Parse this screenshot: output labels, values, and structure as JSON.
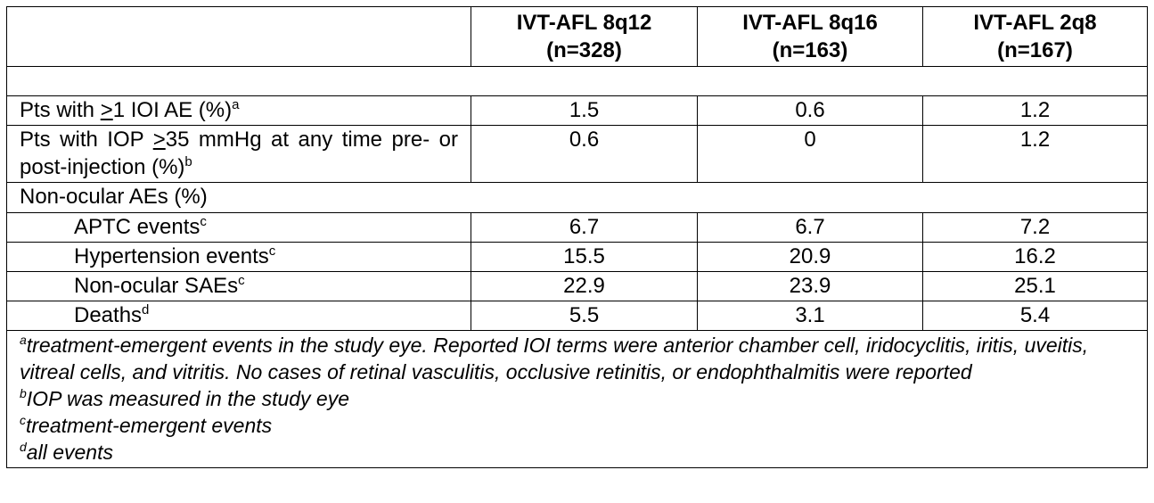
{
  "header": {
    "col0": "",
    "cols": [
      {
        "line1": "IVT-AFL 8q12",
        "line2": "(n=328)"
      },
      {
        "line1": "IVT-AFL 8q16",
        "line2": "(n=163)"
      },
      {
        "line1": "IVT-AFL 2q8",
        "line2": "(n=167)"
      }
    ]
  },
  "rows": [
    {
      "pre": "Pts with ",
      "ge": ">",
      "post": "1 IOI AE (%)",
      "sup": "a",
      "values": [
        "1.5",
        "0.6",
        "1.2"
      ]
    },
    {
      "pre": "Pts with IOP ",
      "ge": ">",
      "post": "35 mmHg at any time pre- or post-injection (%)",
      "sup": "b",
      "values": [
        "0.6",
        "0",
        "1.2"
      ]
    },
    {
      "label": "Non-ocular AEs (%)"
    },
    {
      "label": "APTC events",
      "sup": "c",
      "values": [
        "6.7",
        "6.7",
        "7.2"
      ]
    },
    {
      "label": "Hypertension events",
      "sup": "c",
      "values": [
        "15.5",
        "20.9",
        "16.2"
      ]
    },
    {
      "label": "Non-ocular SAEs",
      "sup": "c",
      "values": [
        "22.9",
        "23.9",
        "25.1"
      ]
    },
    {
      "label": "Deaths",
      "sup": "d",
      "values": [
        "5.5",
        "3.1",
        "5.4"
      ]
    }
  ],
  "footnotes": [
    {
      "mark": "a",
      "text": "treatment-emergent events in the study eye. Reported IOI terms were anterior chamber cell, iridocyclitis, iritis, uveitis, vitreal cells, and vitritis. No cases of retinal vasculitis, occlusive retinitis, or endophthalmitis were reported"
    },
    {
      "mark": "b",
      "text": "IOP was measured in the study eye"
    },
    {
      "mark": "c",
      "text": "treatment-emergent events"
    },
    {
      "mark": "d",
      "text": "all events"
    }
  ]
}
